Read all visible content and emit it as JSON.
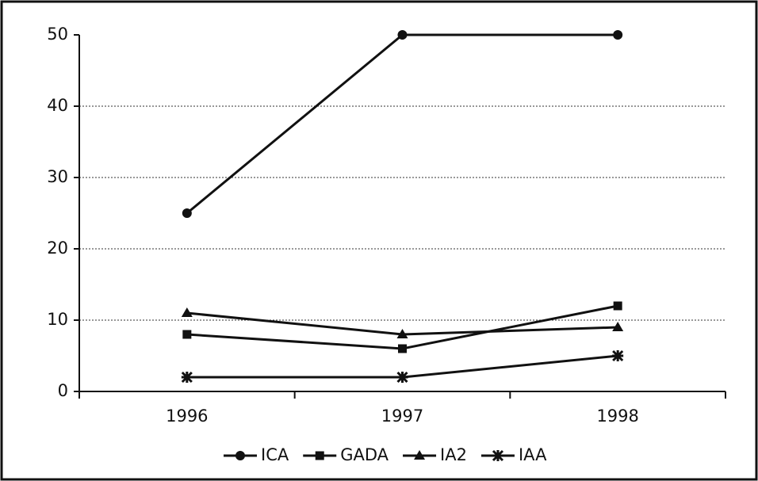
{
  "chart_data": {
    "type": "line",
    "categories": [
      "1996",
      "1997",
      "1998"
    ],
    "series": [
      {
        "name": "ICA",
        "color": "#111111",
        "marker": "circle",
        "values": [
          25,
          50,
          50
        ]
      },
      {
        "name": "GADA",
        "color": "#111111",
        "marker": "square",
        "values": [
          8,
          6,
          12
        ]
      },
      {
        "name": "IA2",
        "color": "#111111",
        "marker": "triangle",
        "values": [
          11,
          8,
          9
        ]
      },
      {
        "name": "IAA",
        "color": "#111111",
        "marker": "asterisk",
        "values": [
          2,
          2,
          5
        ]
      }
    ],
    "ylim": [
      0,
      50
    ],
    "yticks": [
      0,
      10,
      20,
      30,
      40,
      50
    ],
    "grid": true,
    "legend": "bottom"
  }
}
